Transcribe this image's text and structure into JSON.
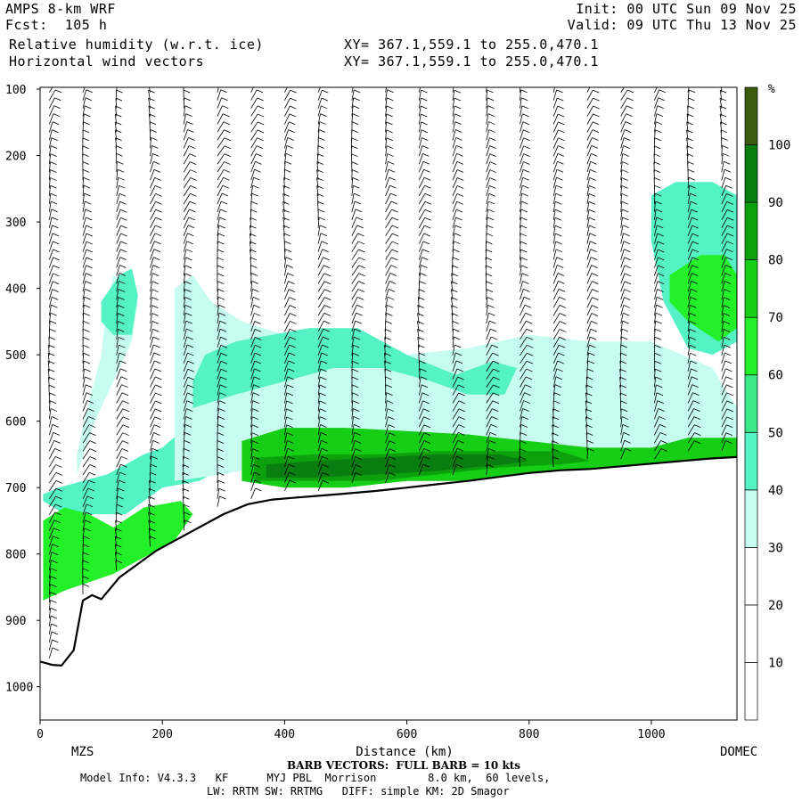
{
  "header": {
    "model": "AMPS 8-km WRF",
    "fcst": "Fcst:  105 h",
    "init": "Init: 00 UTC Sun 09 Nov 25",
    "valid": "Valid: 09 UTC Thu 13 Nov 25",
    "field1": "Relative humidity (w.r.t. ice)",
    "field2": "Horizontal wind vectors",
    "xy1": "XY= 367.1,559.1 to 255.0,470.1",
    "xy2": "XY= 367.1,559.1 to 255.0,470.1"
  },
  "footer": {
    "barb_note": "BARB VECTORS:  FULL BARB = 10 kts",
    "model_info": "Model Info: V4.3.3   KF      MYJ PBL  Morrison        8.0 km,  60 levels,",
    "physics": "LW: RRTM SW: RRTMG   DIFF: simple KM: 2D Smagor"
  },
  "chart_data": {
    "type": "heatmap",
    "xlabel": "Distance (km)",
    "ylabel": "",
    "xlim": [
      0,
      1140
    ],
    "ylim": [
      1050,
      100
    ],
    "x_ticks": [
      0,
      200,
      400,
      600,
      800,
      1000
    ],
    "y_ticks": [
      100,
      200,
      300,
      400,
      500,
      600,
      700,
      800,
      900,
      1000
    ],
    "x_endpoints": [
      "MZS",
      "DOMEC"
    ],
    "colorbar": {
      "unit": "%",
      "levels": [
        10,
        20,
        30,
        40,
        50,
        60,
        70,
        80,
        90,
        100
      ],
      "colors": [
        "#ffffff",
        "#ffffff",
        "#ffffff",
        "#c7fdf0",
        "#54f2c4",
        "#3ce88a",
        "#24f02a",
        "#15ce15",
        "#0ca00c",
        "#0a7d10",
        "#3a5a0e"
      ]
    },
    "terrain_surface": {
      "x": [
        0,
        20,
        35,
        55,
        70,
        85,
        100,
        130,
        160,
        190,
        220,
        260,
        300,
        340,
        380,
        420,
        460,
        500,
        550,
        600,
        650,
        700,
        750,
        800,
        850,
        900,
        950,
        1000,
        1050,
        1100,
        1140
      ],
      "p": [
        962,
        967,
        968,
        945,
        870,
        862,
        868,
        835,
        815,
        795,
        780,
        760,
        740,
        725,
        718,
        715,
        712,
        709,
        705,
        700,
        695,
        690,
        684,
        678,
        674,
        672,
        668,
        664,
        660,
        656,
        654
      ]
    },
    "rh_regions": [
      {
        "x": [
          5,
          40,
          140,
          170,
          200,
          260,
          320,
          360,
          340,
          300,
          280,
          250,
          200,
          170,
          110,
          70,
          30,
          5
        ],
        "p": [
          720,
          740,
          740,
          720,
          700,
          690,
          660,
          640,
          600,
          560,
          550,
          600,
          640,
          650,
          680,
          690,
          700,
          710
        ],
        "rh": 45
      },
      {
        "x": [
          5,
          40,
          120,
          180,
          220,
          250,
          230,
          170,
          120,
          80,
          40,
          5
        ],
        "p": [
          870,
          855,
          830,
          800,
          780,
          740,
          720,
          730,
          760,
          740,
          730,
          750
        ],
        "rh": 65
      },
      {
        "x": [
          60,
          90,
          150,
          160,
          140,
          120,
          110,
          100,
          75,
          60
        ],
        "p": [
          680,
          600,
          480,
          420,
          390,
          380,
          420,
          500,
          590,
          650
        ],
        "rh": 35
      },
      {
        "x": [
          100,
          130,
          150,
          160,
          150,
          120,
          100
        ],
        "p": [
          420,
          380,
          370,
          410,
          470,
          470,
          450
        ],
        "rh": 45
      },
      {
        "x": [
          220,
          300,
          400,
          500,
          600,
          700,
          800,
          900,
          960,
          1020,
          1100,
          1140,
          1140,
          1100,
          1000,
          900,
          800,
          700,
          600,
          500,
          400,
          330,
          280,
          250,
          220
        ],
        "p": [
          690,
          680,
          660,
          660,
          660,
          650,
          650,
          650,
          650,
          645,
          640,
          640,
          580,
          520,
          480,
          480,
          470,
          490,
          500,
          500,
          470,
          450,
          420,
          380,
          400
        ],
        "rh": 35
      },
      {
        "x": [
          250,
          320,
          400,
          480,
          560,
          640,
          700,
          760,
          780,
          740,
          680,
          600,
          520,
          440,
          380,
          320,
          270,
          250
        ],
        "p": [
          580,
          560,
          540,
          520,
          520,
          540,
          560,
          560,
          520,
          510,
          530,
          500,
          460,
          460,
          470,
          480,
          500,
          540
        ],
        "rh": 48
      },
      {
        "x": [
          330,
          400,
          500,
          600,
          700,
          800,
          900,
          1000,
          1060,
          1140,
          1140,
          1060,
          1000,
          900,
          800,
          700,
          600,
          500,
          400,
          330
        ],
        "p": [
          690,
          700,
          700,
          690,
          690,
          680,
          675,
          670,
          665,
          660,
          625,
          625,
          640,
          640,
          630,
          620,
          615,
          610,
          610,
          630
        ],
        "rh": 70
      },
      {
        "x": [
          350,
          450,
          550,
          650,
          750,
          850,
          900,
          850,
          750,
          650,
          550,
          450,
          350
        ],
        "p": [
          690,
          690,
          690,
          680,
          670,
          665,
          660,
          645,
          645,
          645,
          650,
          650,
          655
        ],
        "rh": 85
      },
      {
        "x": [
          370,
          450,
          550,
          650,
          760,
          800,
          750,
          650,
          550,
          450,
          370
        ],
        "p": [
          685,
          685,
          680,
          675,
          665,
          660,
          650,
          650,
          655,
          660,
          665
        ],
        "rh": 98
      },
      {
        "x": [
          1000,
          1040,
          1100,
          1140,
          1140,
          1100,
          1060,
          1020,
          1000
        ],
        "p": [
          260,
          240,
          240,
          260,
          480,
          500,
          490,
          420,
          330
        ],
        "rh": 45
      },
      {
        "x": [
          1030,
          1080,
          1120,
          1140,
          1140,
          1110,
          1060,
          1030
        ],
        "p": [
          380,
          350,
          350,
          380,
          460,
          480,
          450,
          420
        ],
        "rh": 65
      }
    ]
  }
}
